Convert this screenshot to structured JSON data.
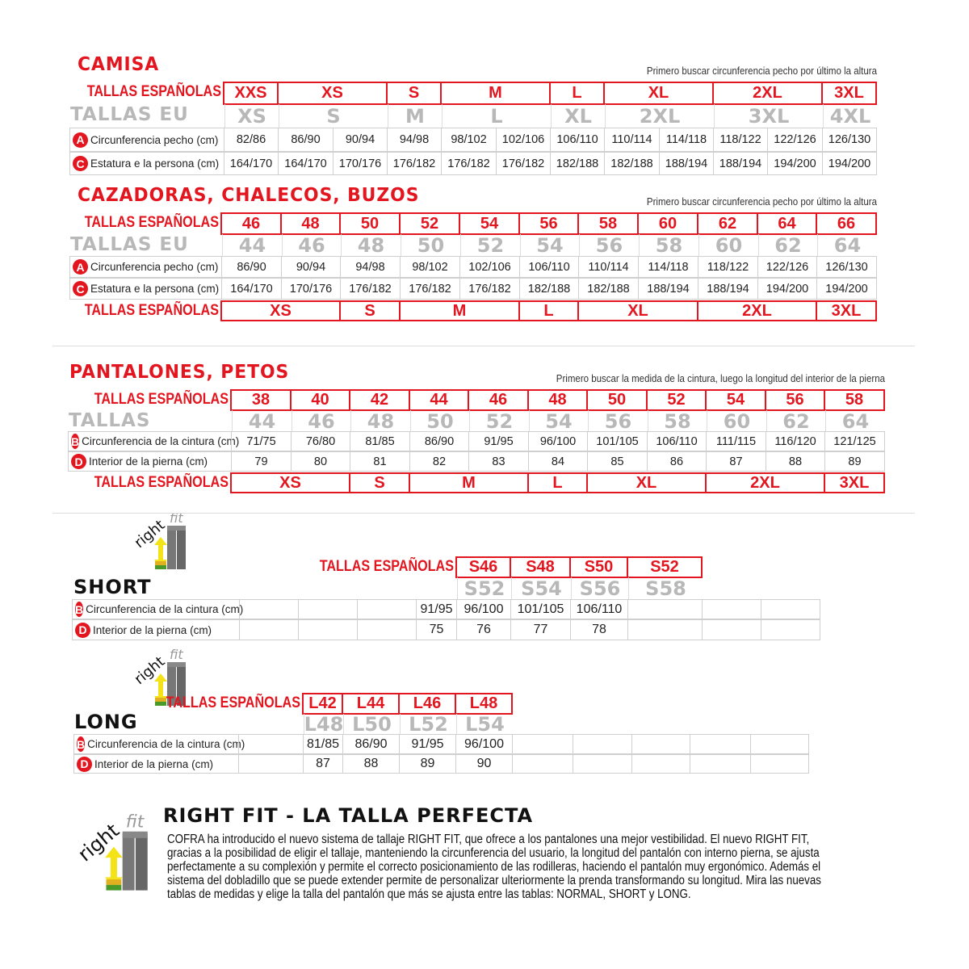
{
  "camisa": {
    "title": "CAMISA",
    "note": "Primero buscar circunferencia pecho por último la altura",
    "es_label": "TALLAS ESPAÑOLAS",
    "eu_label": "TALLAS EU",
    "es": [
      {
        "label": "XXS",
        "span": 1
      },
      {
        "label": "XS",
        "span": 2
      },
      {
        "label": "S",
        "span": 1
      },
      {
        "label": "M",
        "span": 2
      },
      {
        "label": "L",
        "span": 1
      },
      {
        "label": "XL",
        "span": 2
      },
      {
        "label": "2XL",
        "span": 2
      },
      {
        "label": "3XL",
        "span": 1
      }
    ],
    "eu": [
      {
        "label": "XS",
        "span": 1
      },
      {
        "label": "S",
        "span": 2
      },
      {
        "label": "M",
        "span": 1
      },
      {
        "label": "L",
        "span": 2
      },
      {
        "label": "XL",
        "span": 1
      },
      {
        "label": "2XL",
        "span": 2
      },
      {
        "label": "3XL",
        "span": 2
      },
      {
        "label": "4XL",
        "span": 1
      }
    ],
    "rows": [
      {
        "badge": "A",
        "label": "Circunferencia pecho (cm)",
        "values": [
          "82/86",
          "86/90",
          "90/94",
          "94/98",
          "98/102",
          "102/106",
          "106/110",
          "110/114",
          "114/118",
          "118/122",
          "122/126",
          "126/130"
        ]
      },
      {
        "badge": "C",
        "label": "Estatura e la persona (cm)",
        "values": [
          "164/170",
          "164/170",
          "170/176",
          "176/182",
          "176/182",
          "176/182",
          "182/188",
          "182/188",
          "188/194",
          "188/194",
          "194/200",
          "194/200"
        ]
      }
    ]
  },
  "cazadoras": {
    "title": "CAZADORAS, CHALECOS, BUZOS",
    "note": "Primero buscar circunferencia pecho por último la altura",
    "es_label": "TALLAS ESPAÑOLAS",
    "eu_label": "TALLAS EU",
    "es": [
      {
        "label": "46",
        "span": 1
      },
      {
        "label": "48",
        "span": 1
      },
      {
        "label": "50",
        "span": 1
      },
      {
        "label": "52",
        "span": 1
      },
      {
        "label": "54",
        "span": 1
      },
      {
        "label": "56",
        "span": 1
      },
      {
        "label": "58",
        "span": 1
      },
      {
        "label": "60",
        "span": 1
      },
      {
        "label": "62",
        "span": 1
      },
      {
        "label": "64",
        "span": 1
      },
      {
        "label": "66",
        "span": 1
      }
    ],
    "eu": [
      {
        "label": "44",
        "span": 1
      },
      {
        "label": "46",
        "span": 1
      },
      {
        "label": "48",
        "span": 1
      },
      {
        "label": "50",
        "span": 1
      },
      {
        "label": "52",
        "span": 1
      },
      {
        "label": "54",
        "span": 1
      },
      {
        "label": "56",
        "span": 1
      },
      {
        "label": "58",
        "span": 1
      },
      {
        "label": "60",
        "span": 1
      },
      {
        "label": "62",
        "span": 1
      },
      {
        "label": "64",
        "span": 1
      }
    ],
    "rows": [
      {
        "badge": "A",
        "label": "Circunferencia pecho (cm)",
        "values": [
          "86/90",
          "90/94",
          "94/98",
          "98/102",
          "102/106",
          "106/110",
          "110/114",
          "114/118",
          "118/122",
          "122/126",
          "126/130"
        ]
      },
      {
        "badge": "C",
        "label": "Estatura e la persona (cm)",
        "values": [
          "164/170",
          "170/176",
          "176/182",
          "176/182",
          "176/182",
          "182/188",
          "182/188",
          "188/194",
          "188/194",
          "194/200",
          "194/200"
        ]
      }
    ],
    "bottom_label": "TALLAS ESPAÑOLAS",
    "bottom": [
      {
        "label": "XS",
        "span": 2
      },
      {
        "label": "S",
        "span": 1
      },
      {
        "label": "M",
        "span": 2
      },
      {
        "label": "L",
        "span": 1
      },
      {
        "label": "XL",
        "span": 2
      },
      {
        "label": "2XL",
        "span": 2
      },
      {
        "label": "3XL",
        "span": 1
      }
    ]
  },
  "pantalones": {
    "title": "PANTALONES, PETOS",
    "note": "Primero buscar la medida de la cintura, luego la longitud del interior de la pierna",
    "es_label": "TALLAS ESPAÑOLAS",
    "eu_label": "TALLAS",
    "es": [
      {
        "label": "38",
        "span": 1
      },
      {
        "label": "40",
        "span": 1
      },
      {
        "label": "42",
        "span": 1
      },
      {
        "label": "44",
        "span": 1
      },
      {
        "label": "46",
        "span": 1
      },
      {
        "label": "48",
        "span": 1
      },
      {
        "label": "50",
        "span": 1
      },
      {
        "label": "52",
        "span": 1
      },
      {
        "label": "54",
        "span": 1
      },
      {
        "label": "56",
        "span": 1
      },
      {
        "label": "58",
        "span": 1
      }
    ],
    "eu": [
      {
        "label": "44",
        "span": 1
      },
      {
        "label": "46",
        "span": 1
      },
      {
        "label": "48",
        "span": 1
      },
      {
        "label": "50",
        "span": 1
      },
      {
        "label": "52",
        "span": 1
      },
      {
        "label": "54",
        "span": 1
      },
      {
        "label": "56",
        "span": 1
      },
      {
        "label": "58",
        "span": 1
      },
      {
        "label": "60",
        "span": 1
      },
      {
        "label": "62",
        "span": 1
      },
      {
        "label": "64",
        "span": 1
      }
    ],
    "rows": [
      {
        "badge": "B",
        "label": "Circunferencia de la cintura (cm)",
        "values": [
          "71/75",
          "76/80",
          "81/85",
          "86/90",
          "91/95",
          "96/100",
          "101/105",
          "106/110",
          "111/115",
          "116/120",
          "121/125"
        ]
      },
      {
        "badge": "D",
        "label": "Interior de la pierna (cm)",
        "values": [
          "79",
          "80",
          "81",
          "82",
          "83",
          "84",
          "85",
          "86",
          "87",
          "88",
          "89"
        ]
      }
    ],
    "bottom_label": "TALLAS ESPAÑOLAS",
    "bottom": [
      {
        "label": "XS",
        "span": 2
      },
      {
        "label": "S",
        "span": 1
      },
      {
        "label": "M",
        "span": 2
      },
      {
        "label": "L",
        "span": 1
      },
      {
        "label": "XL",
        "span": 2
      },
      {
        "label": "2XL",
        "span": 2
      },
      {
        "label": "3XL",
        "span": 1
      }
    ]
  },
  "short": {
    "title": "SHORT",
    "logo": "rightfit",
    "es_label": "TALLAS ESPAÑOLAS",
    "es": [
      "S46",
      "S48",
      "S50",
      "S52"
    ],
    "eu": [
      "S52",
      "S54",
      "S56",
      "S58"
    ],
    "rows": [
      {
        "badge": "B",
        "label": "Circunferencia de la cintura (cm)",
        "values": [
          "",
          "",
          "",
          "91/95",
          "96/100",
          "101/105",
          "106/110",
          "",
          "",
          ""
        ]
      },
      {
        "badge": "D",
        "label": "Interior de la pierna (cm)",
        "values": [
          "",
          "",
          "",
          "75",
          "76",
          "77",
          "78",
          "",
          "",
          ""
        ]
      }
    ]
  },
  "long": {
    "title": "LONG",
    "logo": "rightfit",
    "es_label": "TALLAS ESPAÑOLAS",
    "es": [
      "L42",
      "L44",
      "L46",
      "L48"
    ],
    "eu": [
      "L48",
      "L50",
      "L52",
      "L54"
    ],
    "rows": [
      {
        "badge": "B",
        "label": "Circunferencia de la cintura (cm)",
        "values": [
          "",
          "81/85",
          "86/90",
          "91/95",
          "96/100",
          "",
          "",
          "",
          "",
          ""
        ]
      },
      {
        "badge": "D",
        "label": "Interior de la pierna (cm)",
        "values": [
          "",
          "87",
          "88",
          "89",
          "90",
          "",
          "",
          "",
          "",
          ""
        ]
      }
    ]
  },
  "rightfit": {
    "title": "RIGHT FIT - LA TALLA PERFECTA",
    "logo": "rightfit",
    "lines": [
      "COFRA ha introducido el nuevo sistema de tallaje RIGHT FIT, que ofrece a los pantalones una mejor vestibilidad. El nuevo RIGHT FIT,",
      "gracias a la posibilidad de eligir el tallaje, manteniendo la circunferencia del usuario, la longitud del pantalón con interno pierna, se ajusta",
      "perfectamente a su complexión y permite el correcto posicionamiento de las rodilleras, haciendo el pantalón muy ergonómico. Además el",
      "sistema del dobladillo que se puede extender permite de personalizar ulteriormente la prenda transformando su longitud. Mira las nuevas",
      "tablas de medidas y elige la talla del pantalón que más se ajusta entre las tablas: NORMAL, SHORT y LONG."
    ]
  },
  "colors": {
    "accent": "#e3151f",
    "eu_gray": "#b8b8b8",
    "badge_text": "#ffffff"
  }
}
